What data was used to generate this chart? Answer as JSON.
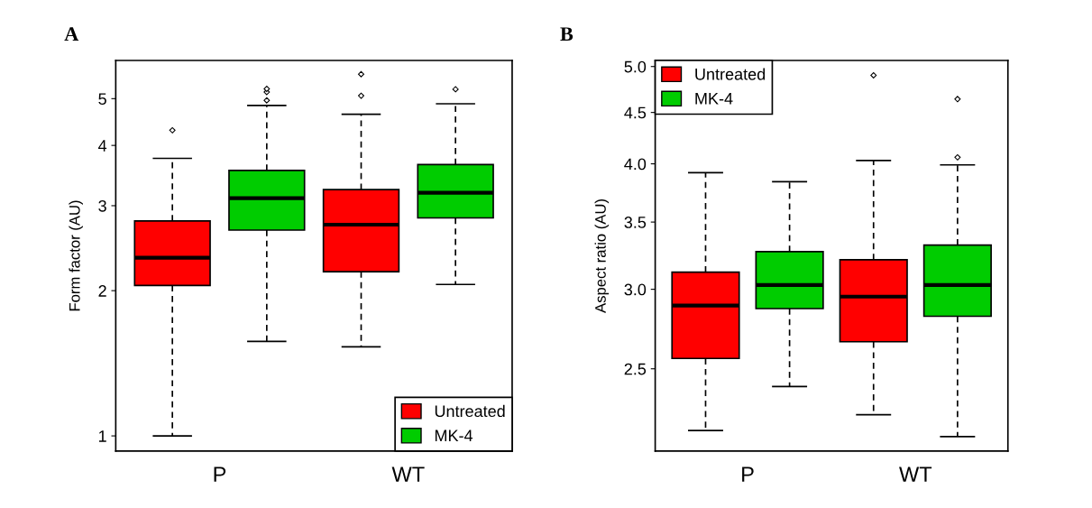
{
  "chart_data": [
    {
      "type": "box",
      "title": "A",
      "ylabel": "Form factor (AU)",
      "categories": [
        "P",
        "WT"
      ],
      "log": true,
      "ylim": [
        0.93,
        6.0
      ],
      "yticks": [
        1,
        2,
        3,
        4,
        5
      ],
      "legend": "bottom right",
      "grid": false,
      "series": [
        {
          "name": "Untreated",
          "color": "#ff0000",
          "boxes": [
            {
              "low": 1.0,
              "q1": 2.05,
              "median": 2.34,
              "q3": 2.79,
              "high": 3.76,
              "outliers": [
                4.3
              ]
            },
            {
              "low": 1.53,
              "q1": 2.19,
              "median": 2.74,
              "q3": 3.24,
              "high": 4.64,
              "outliers": [
                5.07,
                5.62
              ]
            }
          ]
        },
        {
          "name": "MK-4",
          "color": "#00cc00",
          "boxes": [
            {
              "low": 1.57,
              "q1": 2.67,
              "median": 3.11,
              "q3": 3.55,
              "high": 4.84,
              "outliers": [
                4.96,
                5.16,
                5.24
              ]
            },
            {
              "low": 2.06,
              "q1": 2.83,
              "median": 3.19,
              "q3": 3.65,
              "high": 4.88,
              "outliers": [
                5.23
              ]
            }
          ]
        }
      ]
    },
    {
      "type": "box",
      "title": "B",
      "ylabel": "Aspect ratio (AU)",
      "categories": [
        "P",
        "WT"
      ],
      "log": true,
      "ylim": [
        2.07,
        5.07
      ],
      "yticks": [
        {
          "value": 2.5,
          "label": "2.5"
        },
        {
          "value": 3,
          "label": "3.0"
        },
        {
          "value": 3.5,
          "label": "3.5"
        },
        {
          "value": 4,
          "label": "4.0"
        },
        {
          "value": 4.5,
          "label": "4.5"
        },
        {
          "value": 5,
          "label": "5.0"
        }
      ],
      "legend": "top left",
      "grid": false,
      "series": [
        {
          "name": "Untreated",
          "color": "#ff0000",
          "boxes": [
            {
              "low": 2.17,
              "q1": 2.56,
              "median": 2.89,
              "q3": 3.12,
              "high": 3.92
            },
            {
              "low": 2.25,
              "q1": 2.66,
              "median": 2.95,
              "q3": 3.21,
              "high": 4.03,
              "outliers": [
                4.9
              ]
            }
          ]
        },
        {
          "name": "MK-4",
          "color": "#00cc00",
          "boxes": [
            {
              "low": 2.4,
              "q1": 2.87,
              "median": 3.03,
              "q3": 3.27,
              "high": 3.84
            },
            {
              "low": 2.14,
              "q1": 2.82,
              "median": 3.03,
              "q3": 3.32,
              "high": 3.99,
              "outliers": [
                4.06,
                4.64
              ]
            }
          ]
        }
      ]
    }
  ]
}
